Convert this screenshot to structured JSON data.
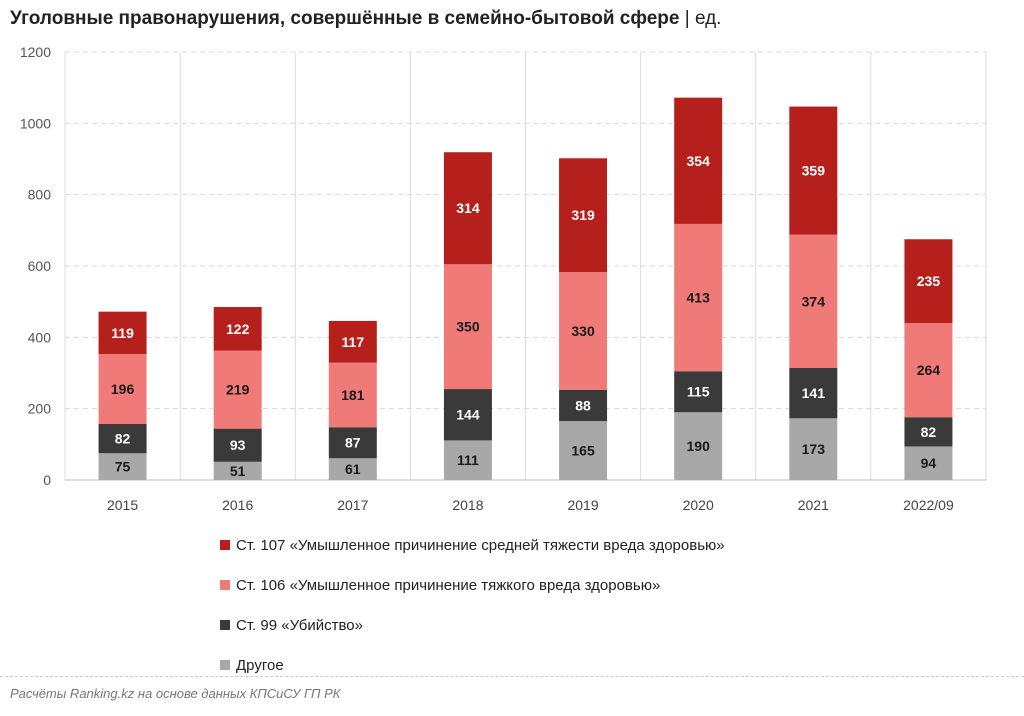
{
  "header": {
    "title": "Уголовные правонарушения, совершённые в семейно-бытовой сфере",
    "unit": " | ед."
  },
  "chart_data": {
    "type": "bar",
    "stacked": true,
    "title": "Уголовные правонарушения, совершённые в семейно-бытовой сфере | ед.",
    "xlabel": "",
    "ylabel": "",
    "ylim": [
      0,
      1200
    ],
    "yticks": [
      0,
      200,
      400,
      600,
      800,
      1000,
      1200
    ],
    "grid": true,
    "legend": "bottom",
    "categories": [
      "2015",
      "2016",
      "2017",
      "2018",
      "2019",
      "2020",
      "2021",
      "2022/09"
    ],
    "series": [
      {
        "name": "Другое",
        "color": "#a8a8a8",
        "label_color": "#1a1a1a",
        "values": [
          75,
          51,
          61,
          111,
          165,
          190,
          173,
          94
        ]
      },
      {
        "name": "Ст. 99 «Убийство»",
        "color": "#3a3a3a",
        "label_color": "#ffffff",
        "values": [
          82,
          93,
          87,
          144,
          88,
          115,
          141,
          82
        ]
      },
      {
        "name": "Ст. 106 «Умышленное причинение тяжкого вреда здоровью»",
        "color": "#f07a78",
        "label_color": "#1a1a1a",
        "values": [
          196,
          219,
          181,
          350,
          330,
          413,
          374,
          264
        ]
      },
      {
        "name": "Ст. 107 «Умышленное причинение средней тяжести вреда здоровью»",
        "color": "#b5201c",
        "label_color": "#ffffff",
        "values": [
          119,
          122,
          117,
          314,
          319,
          354,
          359,
          235
        ]
      }
    ]
  },
  "legend_items": [
    {
      "label": "Ст. 107 «Умышленное причинение средней тяжести вреда здоровью»",
      "color": "#b5201c"
    },
    {
      "label": "Ст. 106 «Умышленное причинение тяжкого вреда здоровью»",
      "color": "#f07a78"
    },
    {
      "label": "Ст. 99 «Убийство»",
      "color": "#3a3a3a"
    },
    {
      "label": "Другое",
      "color": "#a8a8a8"
    }
  ],
  "footer": {
    "source": "Расчёты Ranking.kz на основе данных КПСиСУ ГП РК"
  }
}
